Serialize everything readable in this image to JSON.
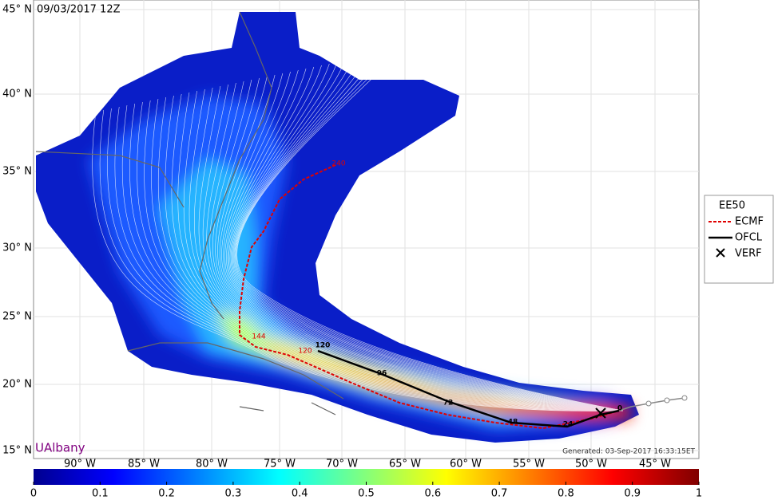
{
  "header": {
    "timestamp": "09/03/2017 12Z"
  },
  "map": {
    "lat_labels": [
      "45° N",
      "40° N",
      "35° N",
      "30° N",
      "25° N",
      "20° N",
      "15° N"
    ],
    "lon_labels": [
      "90° W",
      "85° W",
      "80° W",
      "75° W",
      "70° W",
      "65° W",
      "60° W",
      "55° W",
      "50° W",
      "45° W"
    ],
    "ofcl_labels": [
      "120",
      "96",
      "72",
      "48",
      "24",
      "0"
    ],
    "ecmf_labels": [
      "240",
      "144",
      "120"
    ],
    "watermark": "UAlbany",
    "generated": "Generated: 03-Sep-2017 16:33:15ET"
  },
  "legend": {
    "items": [
      "EE50",
      "ECMF",
      "OFCL",
      "VERF"
    ]
  },
  "colorbar": {
    "ticks": [
      0,
      0.1,
      0.2,
      0.3,
      0.4,
      0.5,
      0.6,
      0.7,
      0.8,
      0.9,
      1
    ]
  }
}
